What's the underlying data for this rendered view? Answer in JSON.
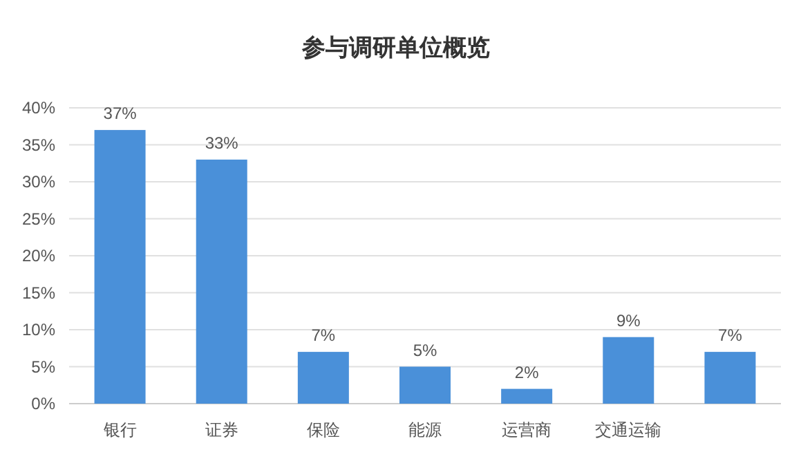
{
  "chart_data": {
    "type": "bar",
    "title": "参与调研单位概览",
    "categories": [
      "银行",
      "证券",
      "保险",
      "能源",
      "运营商",
      "交通运输",
      null
    ],
    "values": [
      37,
      33,
      7,
      5,
      2,
      9,
      7
    ],
    "value_labels": [
      "37%",
      "33%",
      "7%",
      "5%",
      "2%",
      "9%",
      "7%"
    ],
    "color": "#4a90d9",
    "ylim": [
      0,
      40
    ],
    "yticks": [
      {
        "value": 0,
        "label": "0%"
      },
      {
        "value": 5,
        "label": "5%"
      },
      {
        "value": 10,
        "label": "10%"
      },
      {
        "value": 15,
        "label": "15%"
      },
      {
        "value": 20,
        "label": "20%"
      },
      {
        "value": 25,
        "label": "25%"
      },
      {
        "value": 30,
        "label": "30%"
      },
      {
        "value": 35,
        "label": "35%"
      },
      {
        "value": 40,
        "label": "40%"
      }
    ],
    "grid": "y"
  }
}
